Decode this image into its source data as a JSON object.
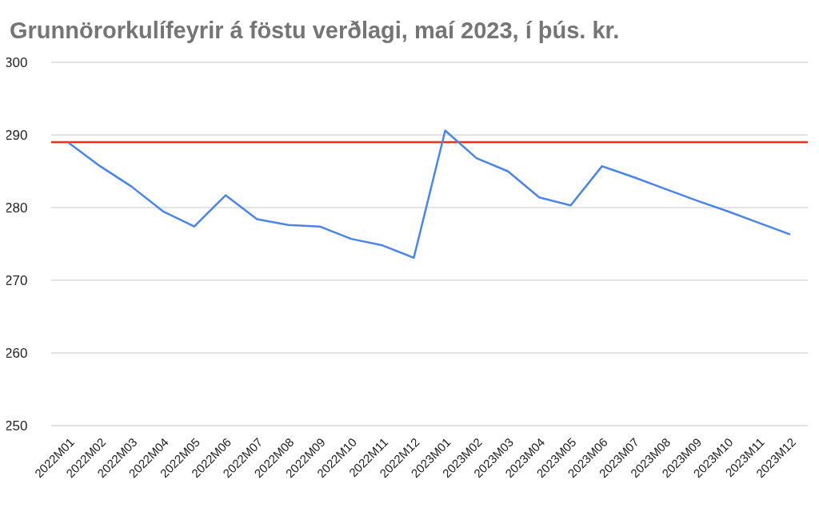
{
  "chart_data": {
    "type": "line",
    "title": "Grunnörorkulífeyrir á föstu verðlagi, maí 2023, í þús. kr.",
    "categories": [
      "2022M01",
      "2022M02",
      "2022M03",
      "2022M04",
      "2022M05",
      "2022M06",
      "2022M07",
      "2022M08",
      "2022M09",
      "2022M10",
      "2022M11",
      "2022M12",
      "2023M01",
      "2023M02",
      "2023M03",
      "2023M04",
      "2023M05",
      "2023M06",
      "2023M07",
      "2023M08",
      "2023M09",
      "2023M10",
      "2023M11",
      "2023M12"
    ],
    "series": [
      {
        "color": "#4a86e8",
        "values": [
          288.9,
          285.7,
          282.9,
          279.5,
          277.4,
          281.7,
          278.4,
          277.6,
          277.4,
          275.7,
          274.8,
          273.1,
          290.6,
          286.8,
          285.0,
          281.4,
          280.3,
          285.7,
          284.2,
          282.6,
          281.0,
          279.5,
          277.9,
          276.3
        ]
      }
    ],
    "ref_lines": [
      {
        "axis": "y",
        "value": 289,
        "color": "#ff2d0f"
      }
    ],
    "ylim": [
      250,
      300
    ],
    "yticks": [
      250,
      260,
      270,
      280,
      290,
      300
    ],
    "grid": "y",
    "marker": "none",
    "line_style": "solid"
  }
}
